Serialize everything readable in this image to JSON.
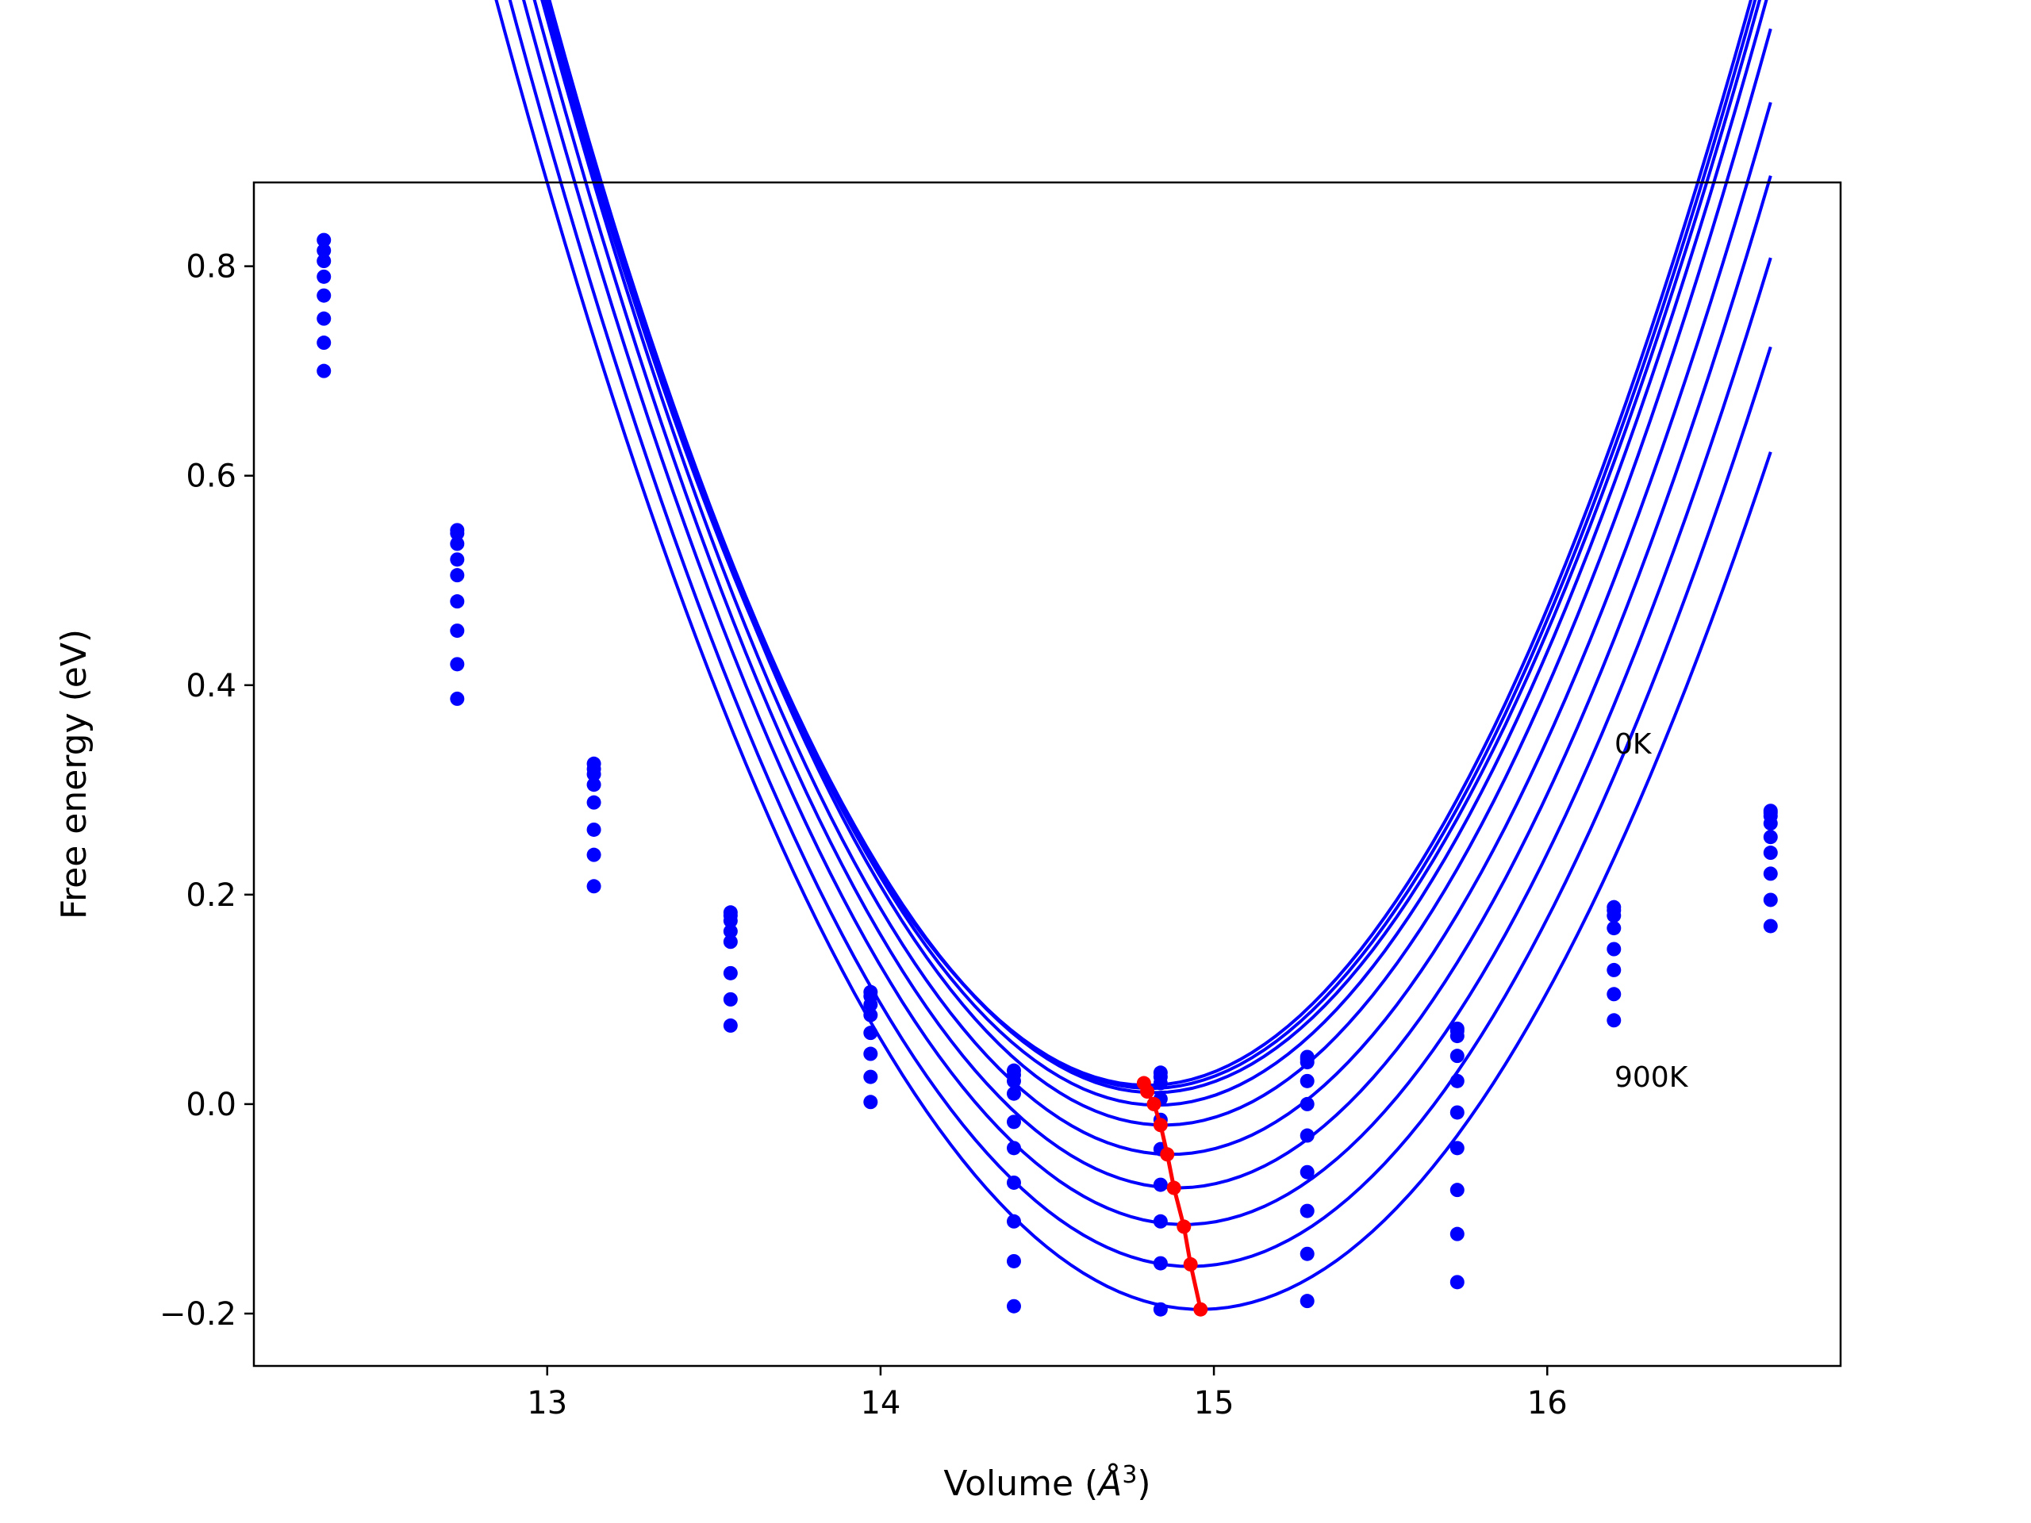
{
  "chart_data": {
    "type": "scatter",
    "title": "",
    "xlabel": "Volume (",
    "xlabel_unit": "Å",
    "xlabel_exp": "3",
    "xlabel_close": ")",
    "ylabel": "Free energy (eV)",
    "xlim": [
      12.12,
      16.88
    ],
    "ylim": [
      -0.25,
      0.88
    ],
    "grid": false,
    "legend": "none",
    "xticks": [
      13,
      14,
      15,
      16
    ],
    "xtick_labels": [
      "13",
      "14",
      "15",
      "16"
    ],
    "yticks": [
      -0.2,
      0.0,
      0.2,
      0.4,
      0.6,
      0.8
    ],
    "ytick_labels": [
      "−0.2",
      "0.0",
      "0.2",
      "0.4",
      "0.6",
      "0.8"
    ],
    "annotations": [
      {
        "text": "0K",
        "x": 16.2,
        "y": 0.33
      },
      {
        "text": "900K",
        "x": 16.2,
        "y": 0.02
      }
    ],
    "volumes": [
      12.33,
      12.73,
      13.14,
      13.55,
      13.97,
      14.4,
      14.84,
      15.28,
      15.73,
      16.2,
      16.67
    ],
    "colors": {
      "curves": "#0000ff",
      "minima": "#ff0000"
    },
    "series": [
      {
        "values": [
          0.825,
          0.548,
          0.325,
          0.183,
          0.107,
          0.032,
          0.03,
          0.045,
          0.072,
          0.188,
          0.28
        ]
      },
      {
        "values": [
          0.815,
          0.545,
          0.32,
          0.18,
          0.103,
          0.028,
          0.026,
          0.043,
          0.07,
          0.185,
          0.278
        ]
      },
      {
        "values": [
          0.805,
          0.535,
          0.315,
          0.175,
          0.095,
          0.022,
          0.02,
          0.04,
          0.065,
          0.18,
          0.275
        ]
      },
      {
        "values": [
          0.79,
          0.52,
          0.305,
          0.165,
          0.085,
          0.01,
          0.005,
          0.022,
          0.046,
          0.168,
          0.268
        ]
      },
      {
        "values": [
          0.772,
          0.505,
          0.288,
          0.155,
          0.068,
          -0.017,
          -0.015,
          0.0,
          0.022,
          0.148,
          0.255
        ]
      },
      {
        "values": [
          0.75,
          0.48,
          0.262,
          0.125,
          0.048,
          -0.042,
          -0.043,
          -0.03,
          -0.008,
          0.128,
          0.24
        ]
      },
      {
        "values": [
          0.727,
          0.452,
          0.238,
          0.1,
          0.026,
          -0.075,
          -0.077,
          -0.065,
          -0.042,
          0.105,
          0.22
        ]
      },
      {
        "values": [
          0.7,
          0.42,
          0.208,
          0.075,
          0.002,
          -0.112,
          -0.112,
          -0.102,
          -0.082,
          0.08,
          0.195
        ]
      },
      {
        "values": [
          null,
          0.387,
          null,
          null,
          null,
          -0.15,
          -0.152,
          -0.143,
          -0.124,
          null,
          0.17
        ]
      },
      {
        "values": [
          null,
          null,
          null,
          null,
          null,
          -0.193,
          -0.196,
          -0.188,
          -0.17,
          null,
          null
        ]
      }
    ],
    "fits": [
      {
        "y0": 0.018,
        "v0": 14.8,
        "a": 0.316
      },
      {
        "y0": 0.015,
        "v0": 14.81,
        "a": 0.316
      },
      {
        "y0": 0.011,
        "v0": 14.82,
        "a": 0.316
      },
      {
        "y0": -0.001,
        "v0": 14.83,
        "a": 0.316
      },
      {
        "y0": -0.02,
        "v0": 14.85,
        "a": 0.316
      },
      {
        "y0": -0.048,
        "v0": 14.87,
        "a": 0.31
      },
      {
        "y0": -0.08,
        "v0": 14.89,
        "a": 0.305
      },
      {
        "y0": -0.115,
        "v0": 14.91,
        "a": 0.298
      },
      {
        "y0": -0.155,
        "v0": 14.93,
        "a": 0.29
      },
      {
        "y0": -0.196,
        "v0": 14.96,
        "a": 0.28
      }
    ],
    "minima": {
      "x": [
        14.79,
        14.8,
        14.82,
        14.84,
        14.86,
        14.88,
        14.91,
        14.93,
        14.96
      ],
      "y": [
        0.02,
        0.012,
        0.0,
        -0.02,
        -0.048,
        -0.08,
        -0.117,
        -0.153,
        -0.196
      ]
    }
  }
}
